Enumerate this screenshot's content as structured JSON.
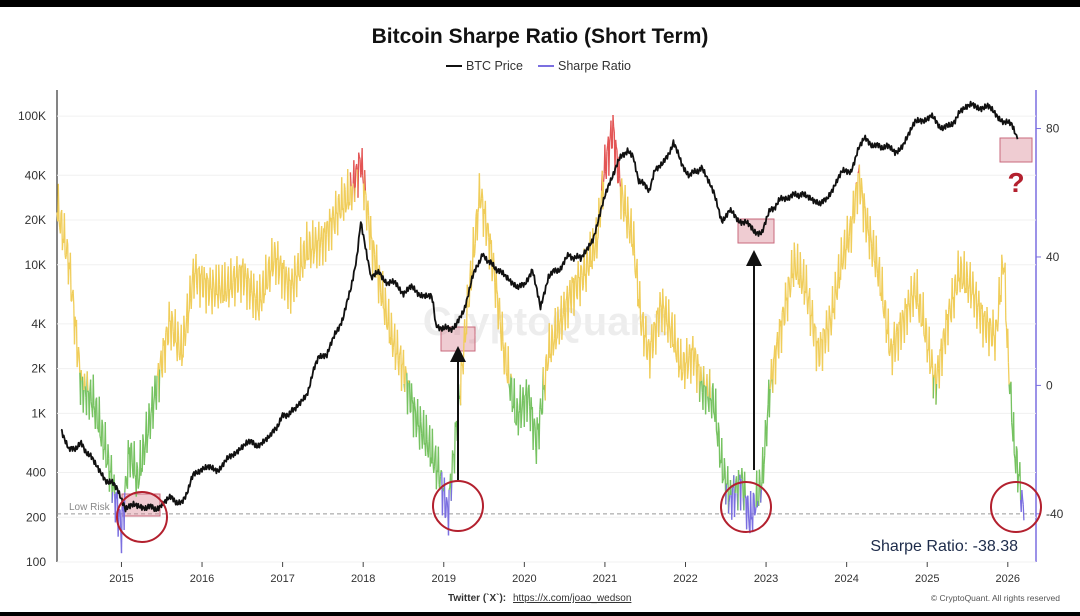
{
  "chart_data": {
    "type": "line",
    "title": "Bitcoin Sharpe Ratio (Short Term)",
    "legend": [
      {
        "name": "BTC Price",
        "color": "#111111"
      },
      {
        "name": "Sharpe Ratio",
        "color": "#7b6fe0"
      }
    ],
    "legend_position": "top-center",
    "left_axis": {
      "scale": "log",
      "range": [
        100,
        150000
      ],
      "ticks": [
        "100K",
        "40K",
        "20K",
        "10K",
        "4K",
        "2K",
        "1K",
        "400",
        "200",
        "100"
      ]
    },
    "right_axis": {
      "scale": "linear",
      "range": [
        -55,
        92
      ],
      "ticks": [
        "80",
        "40",
        "0",
        "-40"
      ]
    },
    "x_axis": {
      "range": [
        2014.2,
        2026.35
      ],
      "ticks": [
        "2015",
        "2016",
        "2017",
        "2018",
        "2019",
        "2020",
        "2021",
        "2022",
        "2023",
        "2024",
        "2025",
        "2026"
      ]
    },
    "series": [
      {
        "name": "BTC Price",
        "axis": "left",
        "color": "#111111",
        "points": [
          [
            2014.25,
            800
          ],
          [
            2014.35,
            560
          ],
          [
            2014.5,
            620
          ],
          [
            2014.65,
            480
          ],
          [
            2014.8,
            360
          ],
          [
            2014.95,
            320
          ],
          [
            2015.05,
            220
          ],
          [
            2015.15,
            250
          ],
          [
            2015.3,
            235
          ],
          [
            2015.45,
            230
          ],
          [
            2015.6,
            270
          ],
          [
            2015.75,
            245
          ],
          [
            2015.9,
            390
          ],
          [
            2016.0,
            430
          ],
          [
            2016.2,
            420
          ],
          [
            2016.4,
            540
          ],
          [
            2016.55,
            650
          ],
          [
            2016.7,
            610
          ],
          [
            2016.85,
            700
          ],
          [
            2017.0,
            950
          ],
          [
            2017.15,
            1050
          ],
          [
            2017.3,
            1350
          ],
          [
            2017.45,
            2500
          ],
          [
            2017.55,
            2400
          ],
          [
            2017.65,
            3500
          ],
          [
            2017.75,
            4300
          ],
          [
            2017.85,
            7000
          ],
          [
            2017.92,
            11000
          ],
          [
            2017.97,
            19000
          ],
          [
            2018.05,
            11000
          ],
          [
            2018.1,
            8000
          ],
          [
            2018.2,
            9000
          ],
          [
            2018.3,
            7500
          ],
          [
            2018.4,
            7500
          ],
          [
            2018.5,
            6500
          ],
          [
            2018.6,
            7000
          ],
          [
            2018.7,
            6400
          ],
          [
            2018.85,
            6300
          ],
          [
            2018.9,
            4000
          ],
          [
            2019.0,
            3700
          ],
          [
            2019.15,
            3800
          ],
          [
            2019.25,
            5000
          ],
          [
            2019.35,
            8000
          ],
          [
            2019.48,
            12000
          ],
          [
            2019.55,
            10500
          ],
          [
            2019.7,
            9000
          ],
          [
            2019.85,
            7300
          ],
          [
            2020.0,
            7200
          ],
          [
            2020.1,
            9500
          ],
          [
            2020.2,
            5000
          ],
          [
            2020.3,
            8500
          ],
          [
            2020.45,
            9500
          ],
          [
            2020.55,
            11500
          ],
          [
            2020.7,
            11000
          ],
          [
            2020.85,
            15000
          ],
          [
            2020.95,
            23000
          ],
          [
            2021.05,
            35000
          ],
          [
            2021.15,
            48000
          ],
          [
            2021.28,
            60000
          ],
          [
            2021.35,
            55000
          ],
          [
            2021.42,
            37000
          ],
          [
            2021.55,
            32000
          ],
          [
            2021.62,
            45000
          ],
          [
            2021.72,
            47000
          ],
          [
            2021.85,
            66000
          ],
          [
            2021.95,
            48000
          ],
          [
            2022.05,
            40000
          ],
          [
            2022.2,
            45000
          ],
          [
            2022.35,
            30000
          ],
          [
            2022.45,
            20000
          ],
          [
            2022.55,
            23000
          ],
          [
            2022.65,
            20000
          ],
          [
            2022.75,
            19500
          ],
          [
            2022.85,
            16500
          ],
          [
            2022.95,
            16800
          ],
          [
            2023.05,
            23000
          ],
          [
            2023.2,
            28000
          ],
          [
            2023.3,
            29000
          ],
          [
            2023.45,
            30000
          ],
          [
            2023.6,
            26000
          ],
          [
            2023.75,
            27000
          ],
          [
            2023.85,
            35000
          ],
          [
            2023.95,
            42000
          ],
          [
            2024.05,
            43000
          ],
          [
            2024.15,
            60000
          ],
          [
            2024.22,
            70000
          ],
          [
            2024.35,
            63000
          ],
          [
            2024.5,
            62000
          ],
          [
            2024.6,
            58000
          ],
          [
            2024.7,
            63000
          ],
          [
            2024.85,
            90000
          ],
          [
            2024.95,
            95000
          ],
          [
            2025.05,
            100000
          ],
          [
            2025.15,
            85000
          ],
          [
            2025.28,
            85000
          ],
          [
            2025.4,
            105000
          ],
          [
            2025.55,
            118000
          ],
          [
            2025.65,
            115000
          ],
          [
            2025.75,
            115000
          ],
          [
            2025.85,
            105000
          ],
          [
            2025.95,
            90000
          ],
          [
            2026.05,
            88000
          ],
          [
            2026.12,
            70000
          ]
        ]
      },
      {
        "name": "Sharpe Ratio",
        "axis": "right",
        "color_zones": {
          "low_risk": "#7b6fe0",
          "green": "#76c261",
          "yellow": "#f0cd5a",
          "red": "#e35555"
        },
        "points": [
          [
            2014.2,
            56
          ],
          [
            2014.35,
            38
          ],
          [
            2014.5,
            0
          ],
          [
            2014.65,
            -5
          ],
          [
            2014.8,
            -20
          ],
          [
            2014.95,
            -38
          ],
          [
            2015.0,
            -45
          ],
          [
            2015.1,
            -20
          ],
          [
            2015.2,
            -30
          ],
          [
            2015.4,
            -5
          ],
          [
            2015.6,
            20
          ],
          [
            2015.75,
            10
          ],
          [
            2015.9,
            35
          ],
          [
            2016.1,
            30
          ],
          [
            2016.3,
            30
          ],
          [
            2016.5,
            35
          ],
          [
            2016.7,
            25
          ],
          [
            2016.9,
            40
          ],
          [
            2017.1,
            30
          ],
          [
            2017.3,
            42
          ],
          [
            2017.5,
            45
          ],
          [
            2017.7,
            55
          ],
          [
            2017.85,
            60
          ],
          [
            2017.97,
            70
          ],
          [
            2018.1,
            45
          ],
          [
            2018.2,
            32
          ],
          [
            2018.35,
            15
          ],
          [
            2018.5,
            5
          ],
          [
            2018.65,
            -10
          ],
          [
            2018.8,
            -18
          ],
          [
            2018.95,
            -28
          ],
          [
            2019.05,
            -40
          ],
          [
            2019.15,
            -15
          ],
          [
            2019.3,
            25
          ],
          [
            2019.45,
            60
          ],
          [
            2019.6,
            40
          ],
          [
            2019.75,
            10
          ],
          [
            2019.9,
            -10
          ],
          [
            2020.05,
            -3
          ],
          [
            2020.15,
            -18
          ],
          [
            2020.3,
            10
          ],
          [
            2020.45,
            20
          ],
          [
            2020.6,
            30
          ],
          [
            2020.75,
            35
          ],
          [
            2020.9,
            45
          ],
          [
            2021.0,
            68
          ],
          [
            2021.1,
            80
          ],
          [
            2021.2,
            60
          ],
          [
            2021.35,
            45
          ],
          [
            2021.45,
            20
          ],
          [
            2021.55,
            10
          ],
          [
            2021.7,
            25
          ],
          [
            2021.85,
            15
          ],
          [
            2021.95,
            5
          ],
          [
            2022.1,
            10
          ],
          [
            2022.2,
            0
          ],
          [
            2022.35,
            -5
          ],
          [
            2022.45,
            -25
          ],
          [
            2022.55,
            -35
          ],
          [
            2022.7,
            -30
          ],
          [
            2022.8,
            -42
          ],
          [
            2022.95,
            -30
          ],
          [
            2023.05,
            0
          ],
          [
            2023.2,
            20
          ],
          [
            2023.35,
            38
          ],
          [
            2023.5,
            30
          ],
          [
            2023.65,
            10
          ],
          [
            2023.8,
            20
          ],
          [
            2023.95,
            40
          ],
          [
            2024.05,
            48
          ],
          [
            2024.15,
            65
          ],
          [
            2024.25,
            50
          ],
          [
            2024.4,
            35
          ],
          [
            2024.55,
            10
          ],
          [
            2024.7,
            20
          ],
          [
            2024.85,
            30
          ],
          [
            2024.95,
            20
          ],
          [
            2025.1,
            0
          ],
          [
            2025.25,
            20
          ],
          [
            2025.4,
            35
          ],
          [
            2025.55,
            30
          ],
          [
            2025.7,
            20
          ],
          [
            2025.85,
            15
          ],
          [
            2025.95,
            40
          ],
          [
            2026.0,
            10
          ],
          [
            2026.08,
            -20
          ],
          [
            2026.15,
            -30
          ],
          [
            2026.2,
            -42
          ]
        ]
      }
    ],
    "low_risk_line": {
      "value": -40,
      "label": "Low Risk"
    },
    "annotation_question": "?",
    "readout": "Sharpe Ratio: -38.38",
    "watermark": "CryptoQuant",
    "footer_left_label": "Twitter (`X`):",
    "footer_link": "https://x.com/joao_wedson",
    "footer_right": "© CryptoQuant. All rights reserved"
  }
}
